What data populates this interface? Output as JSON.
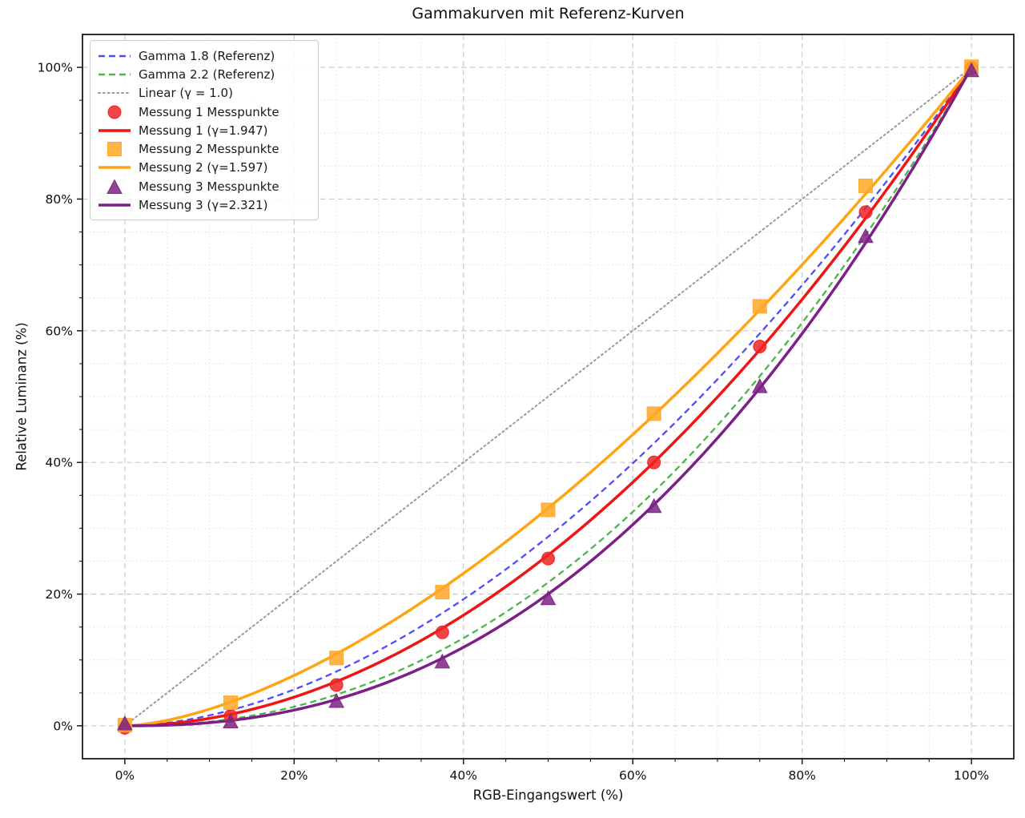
{
  "chart_data": {
    "type": "line",
    "title": "Gammakurven mit Referenz-Kurven",
    "xlabel": "RGB-Eingangswert (%)",
    "ylabel": "Relative Luminanz (%)",
    "xlim": [
      -5,
      105
    ],
    "ylim": [
      -5,
      105
    ],
    "x_tick_values": [
      0,
      20,
      40,
      60,
      80,
      100
    ],
    "x_ticks": [
      "0%",
      "20%",
      "40%",
      "60%",
      "80%",
      "100%"
    ],
    "y_tick_values": [
      0,
      20,
      40,
      60,
      80,
      100
    ],
    "y_ticks": [
      "0%",
      "20%",
      "40%",
      "60%",
      "80%",
      "100%"
    ],
    "minor_tick_step": 5,
    "grid": {
      "major": "dashed",
      "minor": "dotted"
    },
    "legend_position": "upper-left",
    "measurement_x": [
      0,
      12.5,
      25,
      37.5,
      50,
      62.5,
      75,
      87.5,
      100
    ],
    "series": [
      {
        "name": "Gamma 1.8 (Referenz)",
        "kind": "reference",
        "gamma": 1.8,
        "color": "#4d4dff",
        "style": "dashed"
      },
      {
        "name": "Gamma 2.2 (Referenz)",
        "kind": "reference",
        "gamma": 2.2,
        "color": "#4db34d",
        "style": "dashed"
      },
      {
        "name": "Linear (γ = 1.0)",
        "kind": "reference",
        "gamma": 1.0,
        "color": "#999999",
        "style": "dotted"
      },
      {
        "name": "Messung 1 Messpunkte",
        "kind": "points",
        "marker": "circle",
        "color": "#ee2525",
        "values": [
          -0.3,
          1.5,
          6.2,
          14.2,
          25.4,
          40.0,
          57.6,
          78.0,
          99.9
        ]
      },
      {
        "name": "Messung 1 (γ=1.947)",
        "kind": "fit",
        "gamma": 1.947,
        "color": "#f01515",
        "style": "solid"
      },
      {
        "name": "Messung 2 Messpunkte",
        "kind": "points",
        "marker": "square",
        "color": "#ffa726",
        "values": [
          0.1,
          3.5,
          10.3,
          20.3,
          32.8,
          47.4,
          63.7,
          82.0,
          100.1
        ]
      },
      {
        "name": "Messung 2 (γ=1.597)",
        "kind": "fit",
        "gamma": 1.597,
        "color": "#ffa513",
        "style": "solid"
      },
      {
        "name": "Messung 3 Messpunkte",
        "kind": "points",
        "marker": "triangle",
        "color": "#7d2384",
        "values": [
          0.3,
          0.6,
          3.7,
          9.7,
          19.3,
          33.3,
          51.5,
          74.3,
          99.5
        ]
      },
      {
        "name": "Messung 3 (γ=2.321)",
        "kind": "fit",
        "gamma": 2.321,
        "color": "#7c1f87",
        "style": "solid"
      }
    ]
  }
}
